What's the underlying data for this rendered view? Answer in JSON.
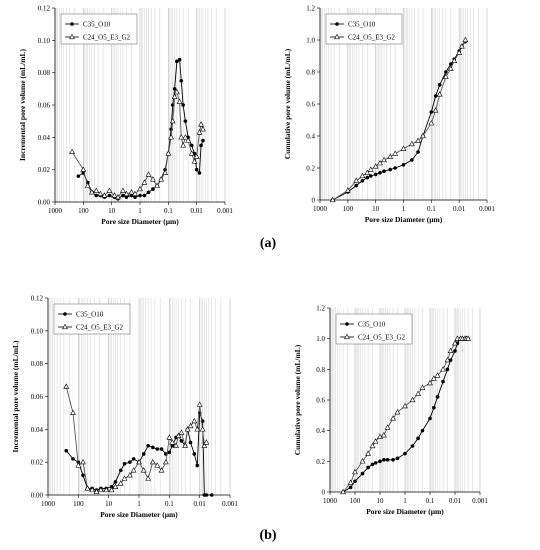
{
  "captions": {
    "a": "(a)",
    "b": "(b)"
  },
  "chart_data": [
    {
      "type": "line",
      "panel": "a-left",
      "xlabel": "Pore size Diameter (µm)",
      "ylabel": "Incremental pore volume (mL/mL)",
      "x_scale": "log-reversed",
      "xlim": [
        1000,
        0.001
      ],
      "ylim": [
        0,
        0.12
      ],
      "yticks": [
        "0.00",
        "0.02",
        "0.04",
        "0.06",
        "0.08",
        "0.10",
        "0.12"
      ],
      "xticks": [
        "1000",
        "100",
        "10",
        "1",
        "0.1",
        "0.01",
        "0.001"
      ],
      "legend_position": "top-left",
      "series": [
        {
          "name": "C35_O10",
          "marker": "circle",
          "x": [
            150,
            100,
            70,
            50,
            35,
            25,
            18,
            12,
            8,
            6,
            4,
            3,
            2,
            1.5,
            1,
            0.7,
            0.5,
            0.35,
            0.25,
            0.18,
            0.13,
            0.1,
            0.08,
            0.07,
            0.06,
            0.05,
            0.04,
            0.035,
            0.03,
            0.025,
            0.02,
            0.015,
            0.012,
            0.01,
            0.008,
            0.007,
            0.006
          ],
          "values": [
            0.016,
            0.018,
            0.012,
            0.006,
            0.004,
            0.004,
            0.003,
            0.004,
            0.003,
            0.002,
            0.004,
            0.003,
            0.004,
            0.003,
            0.004,
            0.004,
            0.006,
            0.008,
            0.01,
            0.014,
            0.02,
            0.03,
            0.045,
            0.06,
            0.07,
            0.087,
            0.088,
            0.075,
            0.06,
            0.05,
            0.04,
            0.035,
            0.03,
            0.02,
            0.018,
            0.035,
            0.038
          ]
        },
        {
          "name": "C24_O5_E3_G2",
          "marker": "triangle",
          "x": [
            250,
            100,
            70,
            50,
            35,
            25,
            18,
            12,
            8,
            6,
            4,
            3,
            2,
            1.5,
            1,
            0.7,
            0.5,
            0.35,
            0.25,
            0.18,
            0.13,
            0.1,
            0.08,
            0.07,
            0.06,
            0.05,
            0.04,
            0.035,
            0.03,
            0.025,
            0.02,
            0.015,
            0.012,
            0.01,
            0.008,
            0.007,
            0.006
          ],
          "values": [
            0.031,
            0.02,
            0.01,
            0.006,
            0.007,
            0.005,
            0.004,
            0.007,
            0.004,
            0.003,
            0.007,
            0.005,
            0.006,
            0.005,
            0.008,
            0.012,
            0.017,
            0.014,
            0.01,
            0.014,
            0.018,
            0.03,
            0.04,
            0.05,
            0.065,
            0.068,
            0.062,
            0.04,
            0.035,
            0.04,
            0.038,
            0.03,
            0.025,
            0.028,
            0.043,
            0.048,
            0.045
          ]
        }
      ]
    },
    {
      "type": "line",
      "panel": "a-right",
      "xlabel": "Pore size Diameter (µm)",
      "ylabel": "Cumulative pore volume (mL/mL)",
      "x_scale": "log-reversed",
      "xlim": [
        1000,
        0.001
      ],
      "ylim": [
        0,
        1.2
      ],
      "yticks": [
        "0",
        "0.2",
        "0.4",
        "0.6",
        "0.8",
        "1.0",
        "1.2"
      ],
      "xticks": [
        "1000",
        "100",
        "10",
        "1",
        "0.1",
        "0.01",
        "0.001"
      ],
      "legend_position": "top-left",
      "series": [
        {
          "name": "C35_O10",
          "marker": "circle",
          "x": [
            350,
            100,
            50,
            30,
            20,
            15,
            10,
            7,
            5,
            3,
            2,
            1,
            0.5,
            0.3,
            0.2,
            0.1,
            0.07,
            0.05,
            0.03,
            0.02,
            0.015,
            0.01,
            0.008,
            0.006
          ],
          "values": [
            0.0,
            0.05,
            0.09,
            0.12,
            0.14,
            0.15,
            0.16,
            0.17,
            0.18,
            0.19,
            0.2,
            0.22,
            0.25,
            0.3,
            0.4,
            0.55,
            0.65,
            0.72,
            0.8,
            0.85,
            0.88,
            0.93,
            0.96,
            0.99
          ]
        },
        {
          "name": "C24_O5_E3_G2",
          "marker": "triangle",
          "x": [
            350,
            100,
            50,
            30,
            20,
            15,
            10,
            7,
            5,
            3,
            2,
            1,
            0.5,
            0.3,
            0.2,
            0.1,
            0.07,
            0.05,
            0.03,
            0.02,
            0.015,
            0.01,
            0.008,
            0.006
          ],
          "values": [
            0.0,
            0.06,
            0.12,
            0.15,
            0.17,
            0.19,
            0.21,
            0.23,
            0.25,
            0.27,
            0.29,
            0.32,
            0.35,
            0.37,
            0.4,
            0.48,
            0.56,
            0.66,
            0.77,
            0.82,
            0.87,
            0.92,
            0.96,
            1.0
          ]
        }
      ]
    },
    {
      "type": "line",
      "panel": "b-left",
      "xlabel": "Pore size Diameter (µm)",
      "ylabel": "Incremental pore volume (mL/mL)",
      "x_scale": "log-reversed",
      "xlim": [
        1000,
        0.001
      ],
      "ylim": [
        0,
        0.12
      ],
      "yticks": [
        "0.00",
        "0.02",
        "0.04",
        "0.06",
        "0.08",
        "0.10",
        "0.12"
      ],
      "xticks": [
        "1000",
        "100",
        "10",
        "1",
        "0.1",
        "0.01",
        "0.001"
      ],
      "legend_position": "top-left",
      "series": [
        {
          "name": "C35_O10",
          "marker": "circle",
          "x": [
            250,
            150,
            100,
            70,
            50,
            35,
            25,
            18,
            12,
            8,
            6,
            4,
            3,
            2,
            1.5,
            1,
            0.7,
            0.5,
            0.35,
            0.25,
            0.18,
            0.13,
            0.1,
            0.08,
            0.06,
            0.05,
            0.04,
            0.03,
            0.025,
            0.02,
            0.015,
            0.012,
            0.01,
            0.008,
            0.007,
            0.006,
            0.004
          ],
          "values": [
            0.027,
            0.022,
            0.02,
            0.012,
            0.004,
            0.004,
            0.003,
            0.004,
            0.004,
            0.005,
            0.008,
            0.015,
            0.019,
            0.02,
            0.022,
            0.02,
            0.025,
            0.03,
            0.029,
            0.028,
            0.028,
            0.025,
            0.026,
            0.03,
            0.035,
            0.036,
            0.033,
            0.03,
            0.04,
            0.032,
            0.025,
            0.018,
            0.05,
            0.045,
            0.0,
            0.0,
            0.0
          ]
        },
        {
          "name": "C24_O5_E3_G2",
          "marker": "triangle",
          "x": [
            250,
            150,
            100,
            70,
            50,
            35,
            25,
            18,
            12,
            8,
            6,
            4,
            3,
            2,
            1.5,
            1,
            0.7,
            0.5,
            0.35,
            0.25,
            0.18,
            0.13,
            0.1,
            0.08,
            0.06,
            0.05,
            0.04,
            0.03,
            0.025,
            0.02,
            0.015,
            0.012,
            0.01,
            0.008,
            0.007,
            0.006
          ],
          "values": [
            0.066,
            0.05,
            0.018,
            0.02,
            0.004,
            0.003,
            0.002,
            0.003,
            0.003,
            0.003,
            0.005,
            0.007,
            0.01,
            0.012,
            0.015,
            0.02,
            0.015,
            0.01,
            0.02,
            0.018,
            0.015,
            0.02,
            0.035,
            0.032,
            0.03,
            0.036,
            0.038,
            0.03,
            0.04,
            0.042,
            0.045,
            0.04,
            0.055,
            0.04,
            0.03,
            0.032
          ]
        }
      ]
    },
    {
      "type": "line",
      "panel": "b-right",
      "xlabel": "Pore size Diameter (µm)",
      "ylabel": "Cumulative pore volume (mL/mL)",
      "x_scale": "log-reversed",
      "xlim": [
        1000,
        0.001
      ],
      "ylim": [
        0,
        1.2
      ],
      "yticks": [
        "0",
        "0.2",
        "0.4",
        "0.6",
        "0.8",
        "1.0",
        "1.2"
      ],
      "xticks": [
        "1000",
        "100",
        "10",
        "1",
        "0.1",
        "0.01",
        "0.001"
      ],
      "legend_position": "top-left",
      "series": [
        {
          "name": "C35_O10",
          "marker": "circle",
          "x": [
            300,
            150,
            100,
            50,
            30,
            20,
            15,
            10,
            7,
            5,
            3,
            2,
            1,
            0.5,
            0.3,
            0.2,
            0.1,
            0.07,
            0.05,
            0.03,
            0.02,
            0.015,
            0.01,
            0.008,
            0.006,
            0.005,
            0.004,
            0.0035,
            0.003
          ],
          "values": [
            0.0,
            0.03,
            0.07,
            0.12,
            0.16,
            0.18,
            0.19,
            0.2,
            0.21,
            0.21,
            0.21,
            0.22,
            0.25,
            0.3,
            0.35,
            0.4,
            0.48,
            0.55,
            0.62,
            0.72,
            0.8,
            0.86,
            0.92,
            0.97,
            1.0,
            1.0,
            1.0,
            1.0,
            1.0
          ]
        },
        {
          "name": "C24_O5_E3_G2",
          "marker": "triangle",
          "x": [
            300,
            150,
            100,
            50,
            30,
            20,
            15,
            10,
            7,
            5,
            3,
            2,
            1,
            0.5,
            0.3,
            0.2,
            0.1,
            0.07,
            0.05,
            0.03,
            0.02,
            0.015,
            0.01,
            0.008,
            0.006,
            0.005,
            0.004,
            0.0035,
            0.003
          ],
          "values": [
            0.0,
            0.06,
            0.13,
            0.2,
            0.25,
            0.3,
            0.33,
            0.36,
            0.37,
            0.42,
            0.48,
            0.52,
            0.56,
            0.6,
            0.64,
            0.68,
            0.71,
            0.74,
            0.76,
            0.8,
            0.86,
            0.92,
            0.97,
            1.0,
            1.0,
            1.0,
            1.0,
            1.0,
            1.0
          ]
        }
      ]
    }
  ]
}
